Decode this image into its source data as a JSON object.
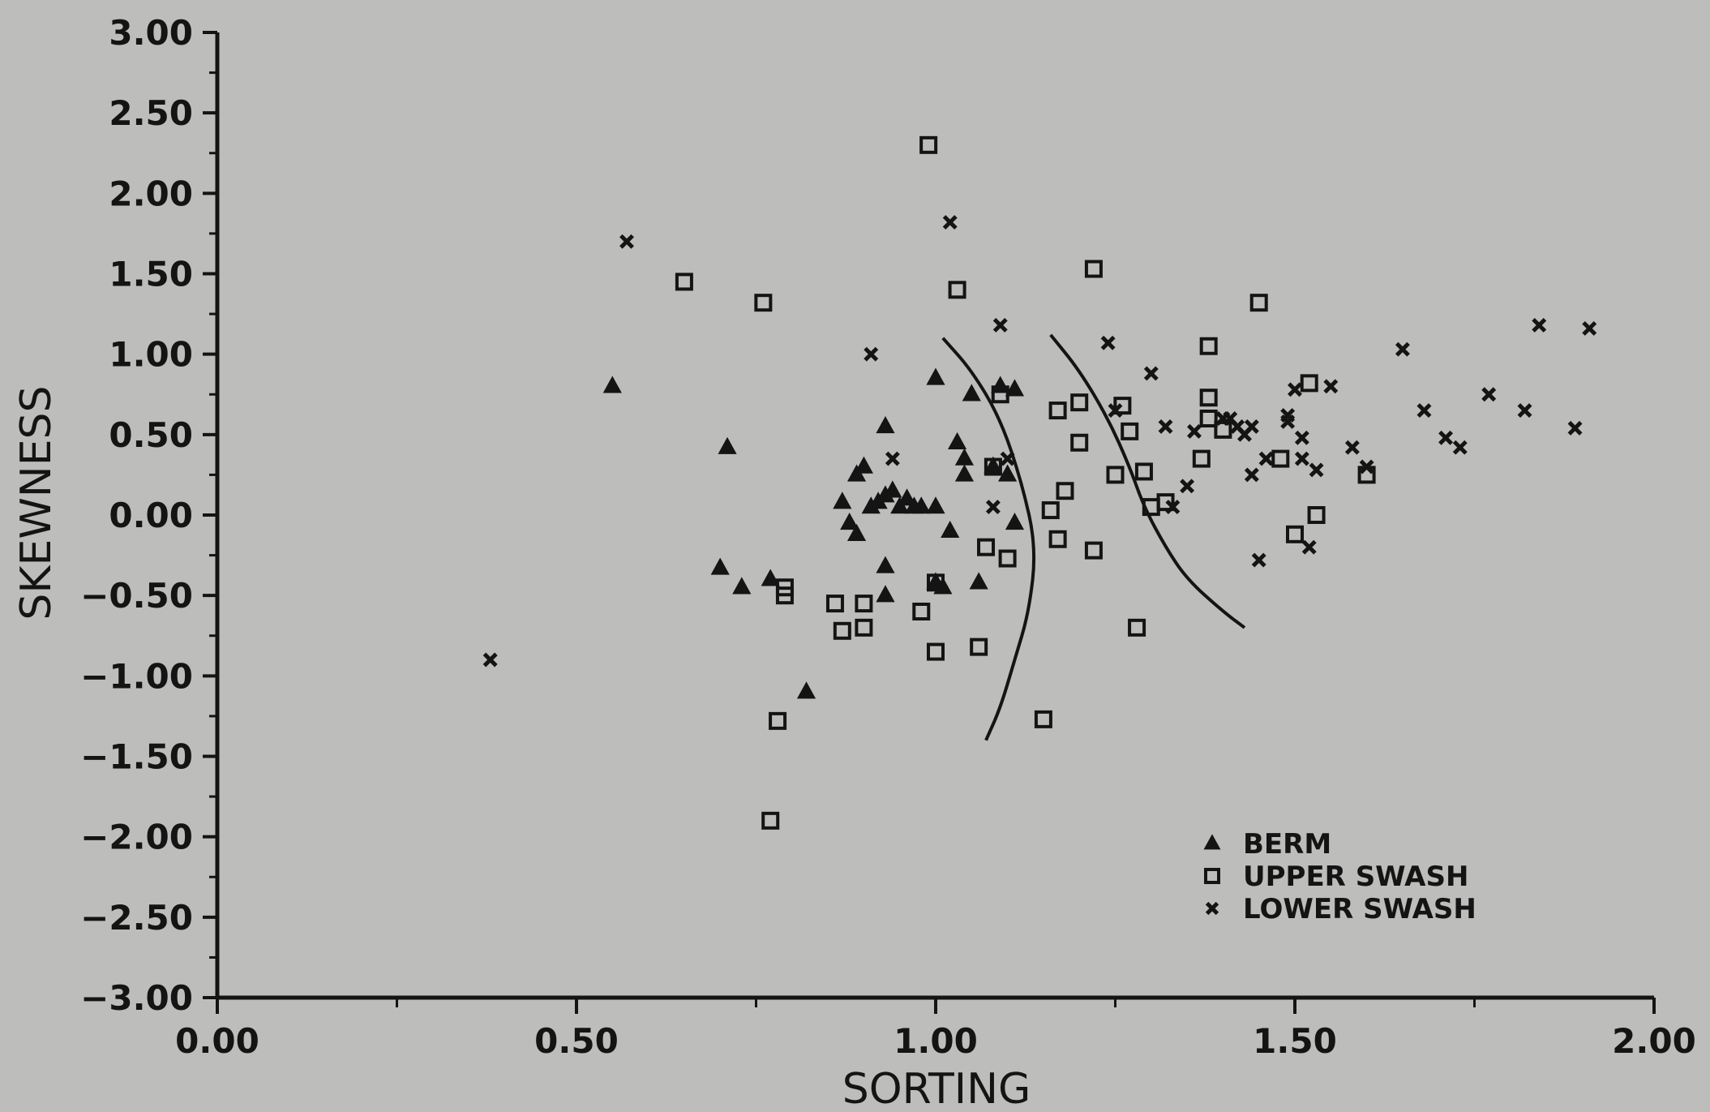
{
  "chart_data": {
    "type": "scatter",
    "title": "",
    "xlabel": "SORTING",
    "ylabel": "SKEWNESS",
    "xlim": [
      0,
      2
    ],
    "ylim": [
      -3,
      3
    ],
    "x_ticks": [
      "0.00",
      "0.50",
      "1.00",
      "1.50",
      "2.00"
    ],
    "x_tick_values": [
      0,
      0.5,
      1.0,
      1.5,
      2.0
    ],
    "y_ticks": [
      "3.00",
      "2.50",
      "2.00",
      "1.50",
      "1.00",
      "0.50",
      "0.00",
      "−0.50",
      "−1.00",
      "−1.50",
      "−2.00",
      "−2.50",
      "−3.00"
    ],
    "y_tick_values": [
      3,
      2.5,
      2,
      1.5,
      1,
      0.5,
      0,
      -0.5,
      -1,
      -1.5,
      -2,
      -2.5,
      -3
    ],
    "grid": false,
    "legend_position": "bottom-right",
    "series": [
      {
        "name": "BERM",
        "marker": "triangle",
        "points": [
          [
            0.55,
            0.8
          ],
          [
            0.71,
            0.42
          ],
          [
            0.7,
            -0.33
          ],
          [
            0.73,
            -0.45
          ],
          [
            0.77,
            -0.4
          ],
          [
            0.82,
            -1.1
          ],
          [
            0.87,
            0.08
          ],
          [
            0.88,
            -0.05
          ],
          [
            0.89,
            0.25
          ],
          [
            0.89,
            -0.12
          ],
          [
            0.9,
            0.3
          ],
          [
            0.91,
            0.05
          ],
          [
            0.92,
            0.08
          ],
          [
            0.93,
            0.12
          ],
          [
            0.94,
            0.15
          ],
          [
            0.95,
            0.05
          ],
          [
            0.96,
            0.1
          ],
          [
            0.97,
            0.05
          ],
          [
            0.93,
            0.55
          ],
          [
            0.93,
            -0.32
          ],
          [
            0.93,
            -0.5
          ],
          [
            0.98,
            0.05
          ],
          [
            1.0,
            0.05
          ],
          [
            1.0,
            0.85
          ],
          [
            1.0,
            -0.42
          ],
          [
            1.01,
            -0.45
          ],
          [
            1.02,
            -0.1
          ],
          [
            1.03,
            0.45
          ],
          [
            1.04,
            0.25
          ],
          [
            1.04,
            0.35
          ],
          [
            1.05,
            0.75
          ],
          [
            1.06,
            -0.42
          ],
          [
            1.09,
            0.8
          ],
          [
            1.11,
            0.78
          ],
          [
            1.08,
            0.3
          ],
          [
            1.1,
            0.25
          ],
          [
            1.11,
            -0.05
          ]
        ]
      },
      {
        "name": "UPPER SWASH",
        "marker": "square",
        "points": [
          [
            0.65,
            1.45
          ],
          [
            0.76,
            1.32
          ],
          [
            0.78,
            -1.28
          ],
          [
            0.77,
            -1.9
          ],
          [
            0.79,
            -0.45
          ],
          [
            0.79,
            -0.5
          ],
          [
            0.86,
            -0.55
          ],
          [
            0.87,
            -0.72
          ],
          [
            0.9,
            -0.55
          ],
          [
            0.9,
            -0.7
          ],
          [
            0.99,
            2.3
          ],
          [
            0.98,
            -0.6
          ],
          [
            1.0,
            -0.42
          ],
          [
            1.0,
            -0.85
          ],
          [
            1.03,
            1.4
          ],
          [
            1.06,
            -0.82
          ],
          [
            1.07,
            -0.2
          ],
          [
            1.08,
            0.3
          ],
          [
            1.09,
            0.75
          ],
          [
            1.1,
            -0.27
          ],
          [
            1.15,
            -1.27
          ],
          [
            1.16,
            0.03
          ],
          [
            1.17,
            -0.15
          ],
          [
            1.17,
            0.65
          ],
          [
            1.18,
            0.15
          ],
          [
            1.2,
            0.7
          ],
          [
            1.2,
            0.45
          ],
          [
            1.22,
            -0.22
          ],
          [
            1.22,
            1.53
          ],
          [
            1.25,
            0.25
          ],
          [
            1.26,
            0.68
          ],
          [
            1.27,
            0.52
          ],
          [
            1.28,
            -0.7
          ],
          [
            1.29,
            0.27
          ],
          [
            1.3,
            0.05
          ],
          [
            1.32,
            0.08
          ],
          [
            1.37,
            0.35
          ],
          [
            1.38,
            1.05
          ],
          [
            1.38,
            0.6
          ],
          [
            1.38,
            0.73
          ],
          [
            1.4,
            0.53
          ],
          [
            1.45,
            1.32
          ],
          [
            1.48,
            0.35
          ],
          [
            1.5,
            -0.12
          ],
          [
            1.52,
            0.82
          ],
          [
            1.53,
            0.0
          ],
          [
            1.6,
            0.25
          ]
        ]
      },
      {
        "name": "LOWER SWASH",
        "marker": "x",
        "points": [
          [
            0.38,
            -0.9
          ],
          [
            0.57,
            1.7
          ],
          [
            0.91,
            1.0
          ],
          [
            0.94,
            0.35
          ],
          [
            1.02,
            1.82
          ],
          [
            1.09,
            1.18
          ],
          [
            1.08,
            0.05
          ],
          [
            1.1,
            0.35
          ],
          [
            1.24,
            1.07
          ],
          [
            1.25,
            0.65
          ],
          [
            1.3,
            0.88
          ],
          [
            1.32,
            0.55
          ],
          [
            1.33,
            0.05
          ],
          [
            1.35,
            0.18
          ],
          [
            1.36,
            0.52
          ],
          [
            1.4,
            0.6
          ],
          [
            1.41,
            0.6
          ],
          [
            1.42,
            0.55
          ],
          [
            1.43,
            0.5
          ],
          [
            1.44,
            0.55
          ],
          [
            1.44,
            0.25
          ],
          [
            1.45,
            -0.28
          ],
          [
            1.46,
            0.35
          ],
          [
            1.49,
            0.58
          ],
          [
            1.49,
            0.62
          ],
          [
            1.5,
            0.78
          ],
          [
            1.51,
            0.48
          ],
          [
            1.51,
            0.35
          ],
          [
            1.52,
            -0.2
          ],
          [
            1.53,
            0.28
          ],
          [
            1.55,
            0.8
          ],
          [
            1.58,
            0.42
          ],
          [
            1.6,
            0.3
          ],
          [
            1.65,
            1.03
          ],
          [
            1.68,
            0.65
          ],
          [
            1.71,
            0.48
          ],
          [
            1.73,
            0.42
          ],
          [
            1.77,
            0.75
          ],
          [
            1.82,
            0.65
          ],
          [
            1.84,
            1.18
          ],
          [
            1.89,
            0.54
          ],
          [
            1.91,
            1.16
          ]
        ]
      }
    ],
    "annotations": {
      "boundary_curves": [
        [
          [
            1.01,
            1.1
          ],
          [
            1.05,
            0.9
          ],
          [
            1.09,
            0.6
          ],
          [
            1.12,
            0.2
          ],
          [
            1.14,
            -0.2
          ],
          [
            1.13,
            -0.6
          ],
          [
            1.11,
            -0.9
          ],
          [
            1.09,
            -1.2
          ],
          [
            1.07,
            -1.4
          ]
        ],
        [
          [
            1.16,
            1.12
          ],
          [
            1.2,
            0.9
          ],
          [
            1.24,
            0.6
          ],
          [
            1.27,
            0.3
          ],
          [
            1.29,
            0.05
          ],
          [
            1.32,
            -0.2
          ],
          [
            1.35,
            -0.4
          ],
          [
            1.4,
            -0.6
          ],
          [
            1.43,
            -0.7
          ]
        ]
      ]
    }
  }
}
